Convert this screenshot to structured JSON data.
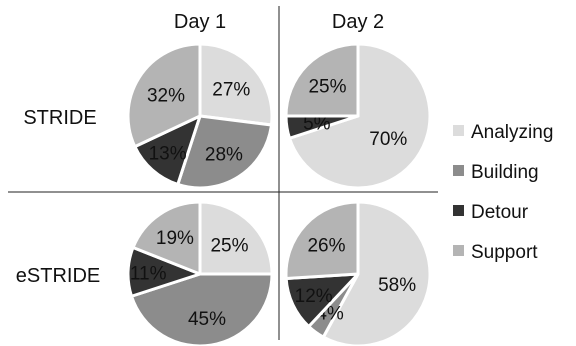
{
  "chart_data": {
    "type": "pie",
    "columns": [
      "Day 1",
      "Day 2"
    ],
    "rows": [
      "STRIDE",
      "eSTRIDE"
    ],
    "categories": [
      "Analyzing",
      "Building",
      "Detour",
      "Support"
    ],
    "colors": {
      "Analyzing": "#dcdcdc",
      "Building": "#8c8c8c",
      "Detour": "#333333",
      "Support": "#b4b4b4"
    },
    "legend_position": "right",
    "pies": [
      {
        "row": "STRIDE",
        "column": "Day 1",
        "values": [
          27,
          28,
          13,
          32
        ],
        "labels": [
          "27%",
          "28%",
          "13%",
          "32%"
        ]
      },
      {
        "row": "STRIDE",
        "column": "Day 2",
        "values": [
          70,
          0,
          5,
          25
        ],
        "labels": [
          "70%",
          "",
          "5%",
          "25%"
        ]
      },
      {
        "row": "eSTRIDE",
        "column": "Day 1",
        "values": [
          25,
          45,
          11,
          19
        ],
        "labels": [
          "25%",
          "45%",
          "11%",
          "19%"
        ]
      },
      {
        "row": "eSTRIDE",
        "column": "Day 2",
        "values": [
          58,
          4,
          12,
          26
        ],
        "labels": [
          "58%",
          "4%",
          "12%",
          "26%"
        ]
      }
    ]
  }
}
